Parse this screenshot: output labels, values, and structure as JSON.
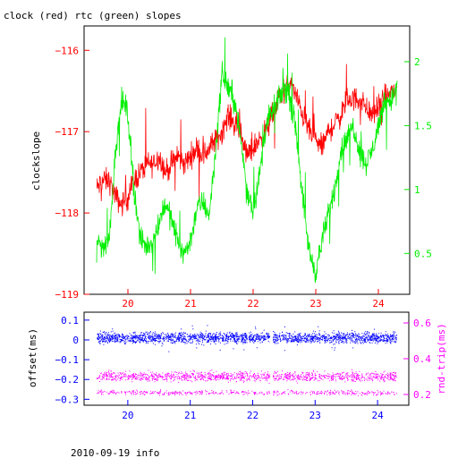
{
  "figure": {
    "title": "clock (red) rtc (green) slopes",
    "footer": "2010-09-19 info"
  },
  "colors": {
    "clock": "#ff0000",
    "rtc": "#00ee00",
    "offset": "#0000ff",
    "rndtrip": "#ff00ff",
    "frame": "#000000"
  },
  "chart_data": [
    {
      "type": "line",
      "title": "clock (red) rtc (green) slopes",
      "xlabel": "",
      "ylabel": "clockslope",
      "y2label": "",
      "xlim": [
        19.3,
        24.5
      ],
      "ylim": [
        -119,
        -115.7
      ],
      "y2lim": [
        0.18,
        2.28
      ],
      "x_ticks": [
        20,
        21,
        22,
        23,
        24
      ],
      "y_ticks": [
        -119,
        -118,
        -117,
        -116
      ],
      "y2_ticks": [
        0.5,
        1,
        1.5,
        2
      ],
      "series": [
        {
          "name": "clock",
          "axis": "left",
          "x": [
            19.5,
            19.6,
            19.7,
            19.8,
            19.9,
            20.0,
            20.1,
            20.2,
            20.3,
            20.4,
            20.5,
            20.6,
            20.7,
            20.8,
            20.9,
            21.0,
            21.1,
            21.2,
            21.3,
            21.4,
            21.5,
            21.6,
            21.7,
            21.8,
            21.9,
            22.0,
            22.1,
            22.2,
            22.3,
            22.4,
            22.5,
            22.6,
            22.7,
            22.8,
            22.9,
            23.0,
            23.1,
            23.2,
            23.3,
            23.4,
            23.5,
            23.6,
            23.7,
            23.8,
            23.9,
            24.0,
            24.1,
            24.2,
            24.3
          ],
          "y": [
            -117.7,
            -117.6,
            -117.6,
            -117.8,
            -117.9,
            -117.8,
            -117.6,
            -117.5,
            -117.4,
            -117.4,
            -117.3,
            -117.5,
            -117.4,
            -117.3,
            -117.4,
            -117.3,
            -117.2,
            -117.3,
            -117.2,
            -117.1,
            -117.0,
            -116.8,
            -116.9,
            -117.0,
            -117.3,
            -117.2,
            -117.1,
            -117.0,
            -116.8,
            -116.6,
            -116.5,
            -116.4,
            -116.6,
            -116.8,
            -117.0,
            -117.1,
            -117.2,
            -117.0,
            -116.9,
            -116.8,
            -116.6,
            -116.6,
            -116.6,
            -116.7,
            -116.8,
            -116.7,
            -116.6,
            -116.5,
            -116.5
          ]
        },
        {
          "name": "rtc",
          "axis": "right",
          "x": [
            19.5,
            19.6,
            19.7,
            19.8,
            19.9,
            20.0,
            20.1,
            20.2,
            20.3,
            20.4,
            20.5,
            20.6,
            20.7,
            20.8,
            20.9,
            21.0,
            21.1,
            21.2,
            21.3,
            21.4,
            21.5,
            21.6,
            21.7,
            21.8,
            21.9,
            22.0,
            22.1,
            22.2,
            22.3,
            22.4,
            22.5,
            22.6,
            22.7,
            22.8,
            22.9,
            23.0,
            23.1,
            23.2,
            23.3,
            23.4,
            23.5,
            23.6,
            23.7,
            23.8,
            23.9,
            24.0,
            24.1,
            24.2,
            24.3
          ],
          "y": [
            0.6,
            0.55,
            0.6,
            1.3,
            1.7,
            1.6,
            1.0,
            0.6,
            0.55,
            0.6,
            0.75,
            0.9,
            0.75,
            0.6,
            0.5,
            0.6,
            0.85,
            0.9,
            0.8,
            1.3,
            1.9,
            1.8,
            1.7,
            1.4,
            1.0,
            0.85,
            1.1,
            1.5,
            1.6,
            1.7,
            1.8,
            1.7,
            1.4,
            0.9,
            0.5,
            0.35,
            0.6,
            0.8,
            1.0,
            1.3,
            1.4,
            1.5,
            1.3,
            1.2,
            1.3,
            1.5,
            1.7,
            1.7,
            1.8
          ]
        }
      ]
    },
    {
      "type": "scatter",
      "xlabel": "",
      "ylabel": "offset(ms)",
      "y2label": "rnd-trip(ms)",
      "xlim": [
        19.3,
        24.5
      ],
      "ylim": [
        -0.33,
        0.14
      ],
      "y2lim": [
        0.14,
        0.66
      ],
      "x_ticks": [
        20,
        21,
        22,
        23,
        24
      ],
      "y_ticks": [
        0.1,
        0,
        -0.1,
        -0.2,
        -0.3
      ],
      "y2_ticks": [
        0.6,
        0.4,
        0.2
      ],
      "series": [
        {
          "name": "offset",
          "axis": "left",
          "x_range": [
            19.5,
            24.3
          ],
          "y_center": 0.01,
          "y_spread": 0.04
        },
        {
          "name": "rnd-trip",
          "axis": "right",
          "x_range": [
            19.5,
            24.3
          ],
          "y_center": 0.3,
          "y_spread": 0.04,
          "y_lower_band": 0.21
        }
      ]
    }
  ]
}
